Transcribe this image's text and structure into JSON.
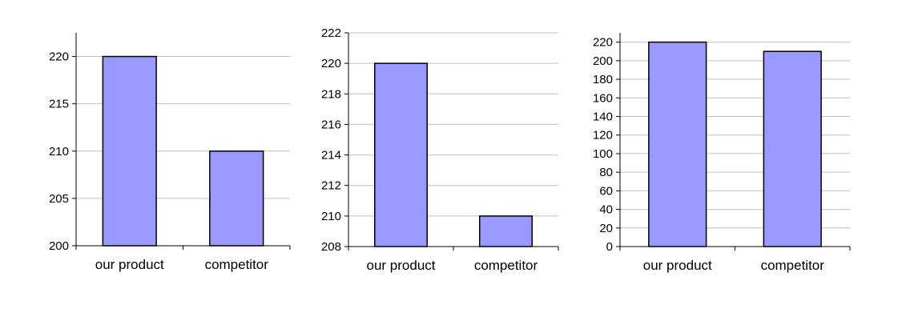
{
  "chart_data": [
    {
      "type": "bar",
      "categories": [
        "our product",
        "competitor"
      ],
      "values": [
        220,
        210
      ],
      "ylim": [
        200,
        222.5
      ],
      "yticks": [
        200,
        205,
        210,
        215,
        220
      ],
      "grid": true,
      "colors": {
        "bar": "#9999ff",
        "grid": "#c0c0c0"
      }
    },
    {
      "type": "bar",
      "categories": [
        "our product",
        "competitor"
      ],
      "values": [
        220,
        210
      ],
      "ylim": [
        208,
        222
      ],
      "yticks": [
        208,
        210,
        212,
        214,
        216,
        218,
        220,
        222
      ],
      "grid": true,
      "colors": {
        "bar": "#9999ff",
        "grid": "#c0c0c0"
      }
    },
    {
      "type": "bar",
      "categories": [
        "our product",
        "competitor"
      ],
      "values": [
        220,
        210
      ],
      "ylim": [
        0,
        230
      ],
      "yticks": [
        0,
        20,
        40,
        60,
        80,
        100,
        120,
        140,
        160,
        180,
        200,
        220
      ],
      "grid": true,
      "colors": {
        "bar": "#9999ff",
        "grid": "#c0c0c0"
      }
    }
  ]
}
